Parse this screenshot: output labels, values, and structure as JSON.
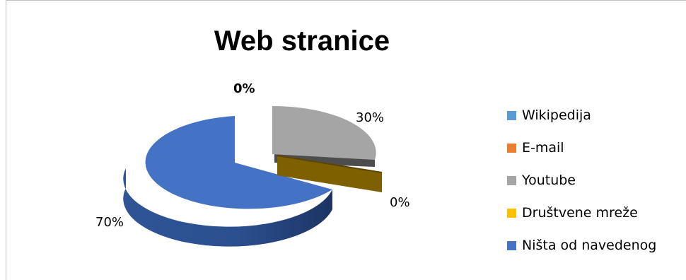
{
  "chart_data": {
    "type": "pie",
    "title": "Web stranice",
    "categories": [
      "Wikipedija",
      "E-mail",
      "Youtube",
      "Društvene mreže",
      "Ništa od navedenog"
    ],
    "values": [
      0,
      0,
      30,
      0,
      70
    ],
    "data_labels": [
      "0%",
      "",
      "30%",
      "0%",
      "70%"
    ],
    "colors": [
      "#5b9bd5",
      "#ed7d31",
      "#a5a5a5",
      "#ffc000",
      "#4472c4"
    ],
    "legend_position": "right",
    "style": "3d-exploded"
  }
}
